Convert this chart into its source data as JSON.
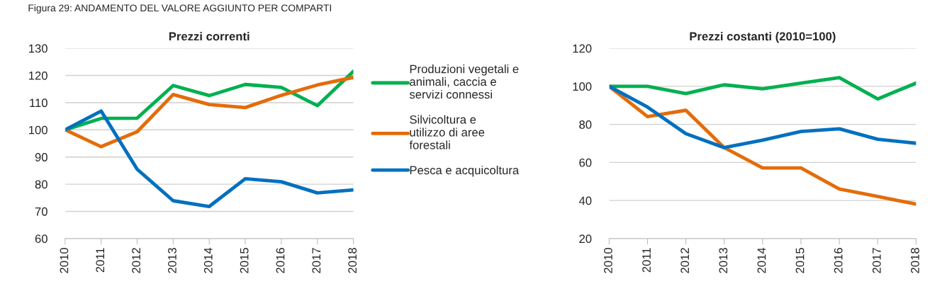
{
  "chart_data": [
    {
      "type": "line",
      "title": "Prezzi correnti",
      "annotations": [
        "Figura 29: ANDAMENTO DEL VALORE AGGIUNTO PER COMPARTI"
      ],
      "categories": [
        "2010",
        "2011",
        "2012",
        "2013",
        "2014",
        "2015",
        "2016",
        "2017",
        "2018"
      ],
      "series": [
        {
          "name": "Produzioni vegetali e animali, caccia e servizi connessi",
          "color": "#00b050",
          "values": [
            100,
            104.2,
            104.3,
            116.3,
            112.6,
            116.7,
            115.6,
            108.9,
            121.5
          ]
        },
        {
          "name": "Silvicoltura e utilizzo di aree forestali",
          "color": "#e46c0a",
          "values": [
            100,
            93.8,
            99.3,
            113,
            109.3,
            108.2,
            112.7,
            116.5,
            119.3
          ]
        },
        {
          "name": "Pesca e acquicoltura",
          "color": "#0070c0",
          "values": [
            100,
            106.9,
            85.5,
            73.9,
            71.8,
            82,
            80.9,
            76.8,
            77.9
          ]
        }
      ],
      "ylim": [
        60,
        130
      ],
      "yticks": [
        60,
        70,
        80,
        90,
        100,
        110,
        120,
        130
      ],
      "grid": "y",
      "legend": "right",
      "line_style": "solid",
      "marker": "none"
    },
    {
      "type": "line",
      "title": "Prezzi costanti (2010=100)",
      "categories": [
        "2010",
        "2011",
        "2012",
        "2013",
        "2014",
        "2015",
        "2016",
        "2017",
        "2018"
      ],
      "series": [
        {
          "color": "#00b050",
          "values": [
            100,
            100,
            96.2,
            100.8,
            98.7,
            101.7,
            104.6,
            93.4,
            101.7
          ]
        },
        {
          "color": "#e46c0a",
          "values": [
            100,
            84.1,
            87.4,
            67.8,
            57.1,
            57.1,
            46,
            42.1,
            38.1
          ]
        },
        {
          "color": "#0070c0",
          "values": [
            100,
            89.1,
            75.1,
            67.8,
            71.7,
            76.3,
            77.7,
            72.2,
            70.1
          ]
        }
      ],
      "ylim": [
        20,
        120
      ],
      "yticks": [
        20,
        40,
        60,
        80,
        100,
        120
      ],
      "grid": "y",
      "legend": false,
      "line_style": "solid",
      "marker": "none"
    }
  ]
}
